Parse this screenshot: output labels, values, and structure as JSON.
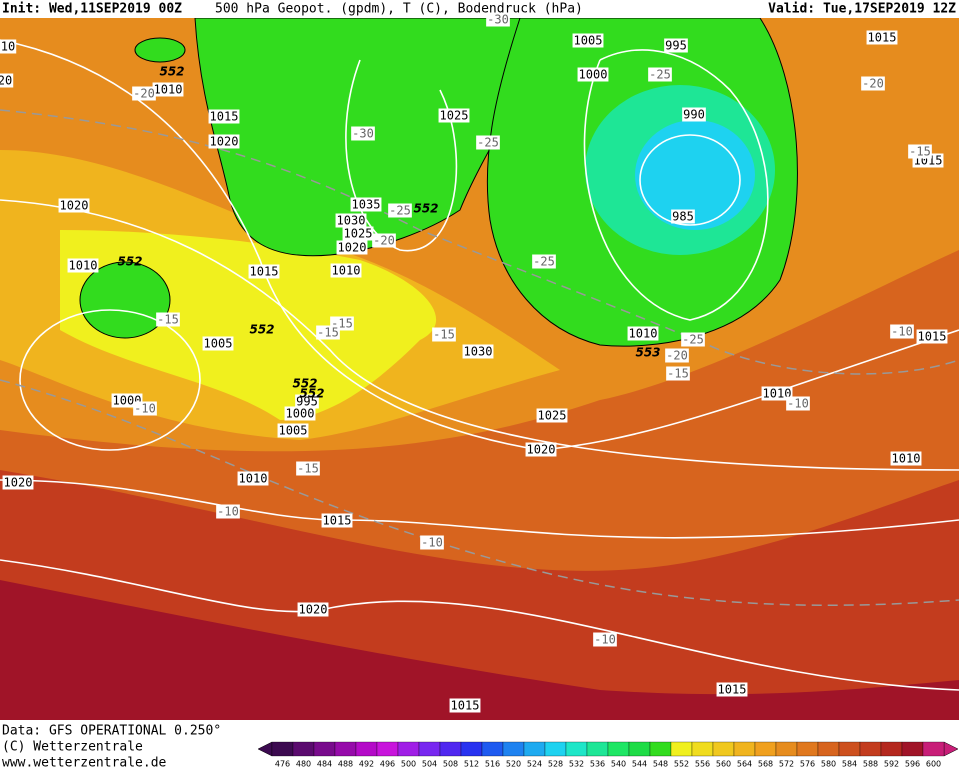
{
  "header": {
    "init": "Init: Wed,11SEP2019 00Z",
    "title": "500 hPa Geopot. (gpdm), T (C), Bodendruck (hPa)",
    "valid": "Valid: Tue,17SEP2019 12Z"
  },
  "footer": {
    "source": "Data: GFS OPERATIONAL 0.250°",
    "copyright": "(C) Wetterzentrale",
    "url": "www.wetterzentrale.de"
  },
  "legend": {
    "levels": [
      476,
      480,
      484,
      488,
      492,
      496,
      500,
      504,
      508,
      512,
      516,
      520,
      524,
      528,
      532,
      536,
      540,
      544,
      548,
      552,
      556,
      560,
      564,
      568,
      572,
      576,
      580,
      584,
      588,
      592,
      596,
      600
    ],
    "colors": [
      "#3c0a50",
      "#5a0a6e",
      "#780a8c",
      "#960aaa",
      "#b40ac8",
      "#c814dc",
      "#a01ee6",
      "#7828f0",
      "#5028f0",
      "#2832f0",
      "#1e5af0",
      "#1e82f0",
      "#1eaaf0",
      "#1ed2f0",
      "#1ee6c8",
      "#1ee696",
      "#1ee664",
      "#1edc46",
      "#32dc1e",
      "#f0f01e",
      "#f0dc1e",
      "#f0c81e",
      "#f0b41e",
      "#f0a01e",
      "#e68c1e",
      "#e0781e",
      "#d7641e",
      "#cd501e",
      "#c33c1e",
      "#b4281e",
      "#a01428",
      "#c81e78"
    ]
  },
  "isobar_labels": [
    "10",
    "20",
    "1005",
    "995",
    "1000",
    "1015",
    "1010",
    "1015",
    "1020",
    "1025",
    "990",
    "1015",
    "1020",
    "1035",
    "1030",
    "1025",
    "1020",
    "985",
    "1010",
    "1015",
    "1010",
    "1005",
    "1010",
    "1030",
    "1015",
    "1000",
    "995",
    "1000",
    "1005",
    "1025",
    "1010",
    "1020",
    "1010",
    "1010",
    "1020",
    "1015",
    "1020",
    "1015",
    "1015"
  ],
  "temperature_labels": [
    "-30",
    "-20",
    "-30",
    "-25",
    "-25",
    "-20",
    "-15",
    "-25",
    "-20",
    "-25",
    "-15",
    "-15",
    "-15",
    "-15",
    "-25",
    "-20",
    "-15",
    "-10",
    "-10",
    "-10",
    "-15",
    "-10",
    "-10",
    "-10"
  ],
  "height_labels": [
    "552",
    "552",
    "552",
    "552",
    "552",
    "552",
    "553"
  ]
}
